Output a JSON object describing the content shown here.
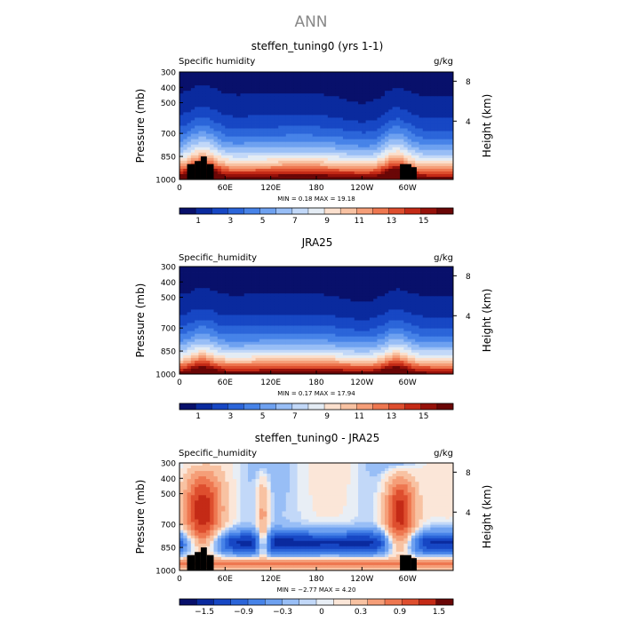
{
  "figure_title": "ANN",
  "chart_data": [
    {
      "type": "heatmap",
      "title": "steffen_tuning0 (yrs 1-1)",
      "field_label": "Specific humidity",
      "units": "g/kg",
      "ylabel": "Pressure (mb)",
      "ylabel_right": "Height (km)",
      "y_ticks": [
        "300",
        "400",
        "500",
        "700",
        "850",
        "1000"
      ],
      "y_tick_values": [
        300,
        400,
        500,
        700,
        850,
        1000
      ],
      "ylim": [
        300,
        1000
      ],
      "height_ticks": [
        "8",
        "4"
      ],
      "height_tick_pressures": [
        360,
        620
      ],
      "x_ticks": [
        "0",
        "60E",
        "120E",
        "180",
        "120W",
        "60W"
      ],
      "x_tick_values": [
        0,
        60,
        120,
        180,
        240,
        300
      ],
      "xlim": [
        0,
        360
      ],
      "stats": {
        "min_label": "MIN =",
        "min": "0.18",
        "max_label": "MAX =",
        "max": "19.18"
      },
      "colorbar_ticks": [
        "1",
        "3",
        "5",
        "7",
        "9",
        "11",
        "13",
        "15"
      ],
      "colorbar_colors": [
        "#08106b",
        "#0a2a9e",
        "#1747c4",
        "#2b65d9",
        "#4783e8",
        "#6ea1f0",
        "#98bef6",
        "#c2d8f8",
        "#e4ecf4",
        "#fbe0ce",
        "#f8c2a2",
        "#f59e78",
        "#ee7750",
        "#de4e2e",
        "#c42a16",
        "#96110a",
        "#6a0606"
      ],
      "colormap": "blue-white-red",
      "value_model": {
        "surface": 17,
        "scale_height": 1.8,
        "upper": 0.2,
        "wet_bands": [
          {
            "lon": 30,
            "width": 16,
            "gain": 0.6
          },
          {
            "lon": 285,
            "width": 14,
            "gain": 0.55
          },
          {
            "lon": 165,
            "width": 70,
            "gain": 0.15
          }
        ],
        "dry_bands": [
          {
            "lon": 240,
            "width": 25,
            "gain": 0.35
          }
        ],
        "topography": [
          {
            "lon1": 10,
            "lon2": 20,
            "p_top": 900
          },
          {
            "lon1": 20,
            "lon2": 28,
            "p_top": 880
          },
          {
            "lon1": 28,
            "lon2": 36,
            "p_top": 850
          },
          {
            "lon1": 36,
            "lon2": 45,
            "p_top": 900
          },
          {
            "lon1": 290,
            "lon2": 305,
            "p_top": 900
          },
          {
            "lon1": 305,
            "lon2": 312,
            "p_top": 920
          }
        ]
      }
    },
    {
      "type": "heatmap",
      "title": "JRA25",
      "field_label": "Specific_humidity",
      "units": "g/kg",
      "ylabel": "Pressure (mb)",
      "ylabel_right": "Height (km)",
      "y_ticks": [
        "300",
        "400",
        "500",
        "700",
        "850",
        "1000"
      ],
      "y_tick_values": [
        300,
        400,
        500,
        700,
        850,
        1000
      ],
      "ylim": [
        300,
        1000
      ],
      "height_ticks": [
        "8",
        "4"
      ],
      "height_tick_pressures": [
        360,
        620
      ],
      "x_ticks": [
        "0",
        "60E",
        "120E",
        "180",
        "120W",
        "60W"
      ],
      "x_tick_values": [
        0,
        60,
        120,
        180,
        240,
        300
      ],
      "xlim": [
        0,
        360
      ],
      "stats": {
        "min_label": "MIN =",
        "min": "0.17",
        "max_label": "MAX =",
        "max": "17.94"
      },
      "colorbar_ticks": [
        "1",
        "3",
        "5",
        "7",
        "9",
        "11",
        "13",
        "15"
      ],
      "colorbar_colors": [
        "#08106b",
        "#0a2a9e",
        "#1747c4",
        "#2b65d9",
        "#4783e8",
        "#6ea1f0",
        "#98bef6",
        "#c2d8f8",
        "#e4ecf4",
        "#fbe0ce",
        "#f8c2a2",
        "#f59e78",
        "#ee7750",
        "#de4e2e",
        "#c42a16",
        "#96110a",
        "#6a0606"
      ],
      "colormap": "blue-white-red",
      "value_model": {
        "surface": 16.5,
        "scale_height": 1.9,
        "upper": 0.2,
        "wet_bands": [
          {
            "lon": 30,
            "width": 14,
            "gain": 0.4
          },
          {
            "lon": 285,
            "width": 14,
            "gain": 0.4
          },
          {
            "lon": 165,
            "width": 70,
            "gain": 0.12
          }
        ],
        "dry_bands": [
          {
            "lon": 240,
            "width": 25,
            "gain": 0.3
          }
        ],
        "topography": []
      }
    },
    {
      "type": "heatmap",
      "title": "steffen_tuning0 - JRA25",
      "field_label": "Specific_humidity",
      "units": "g/kg",
      "ylabel": "Pressure (mb)",
      "ylabel_right": "Height (km)",
      "y_ticks": [
        "300",
        "400",
        "500",
        "700",
        "850",
        "1000"
      ],
      "y_tick_values": [
        300,
        400,
        500,
        700,
        850,
        1000
      ],
      "ylim": [
        300,
        1000
      ],
      "height_ticks": [
        "8",
        "4"
      ],
      "height_tick_pressures": [
        360,
        620
      ],
      "x_ticks": [
        "0",
        "60E",
        "120E",
        "180",
        "120W",
        "60W"
      ],
      "x_tick_values": [
        0,
        60,
        120,
        180,
        240,
        300
      ],
      "xlim": [
        0,
        360
      ],
      "stats": {
        "min_label": "MIN =",
        "min": "−2.77",
        "max_label": "MAX =",
        "max": "4.20"
      },
      "colorbar_ticks": [
        "−1.5",
        "−0.9",
        "−0.3",
        "0",
        "0.3",
        "0.9",
        "1.5"
      ],
      "colorbar_colors": [
        "#08106b",
        "#0a2a9e",
        "#1747c4",
        "#2b65d9",
        "#4783e8",
        "#6ea1f0",
        "#98bef6",
        "#c2d8f8",
        "#e8eef5",
        "#fbe6d8",
        "#f8c2a2",
        "#f59e78",
        "#ee7750",
        "#de4e2e",
        "#c42a16",
        "#6a0606"
      ],
      "colormap": "diverging",
      "value_model": {
        "difference": true,
        "wet_bands": [
          {
            "lon": 30,
            "width": 18,
            "gain": 1.0
          },
          {
            "lon": 290,
            "width": 15,
            "gain": 1.1
          },
          {
            "lon": 110,
            "width": 6,
            "gain": 0.5
          }
        ],
        "dry_band_pressure": 820,
        "topography": [
          {
            "lon1": 10,
            "lon2": 20,
            "p_top": 900
          },
          {
            "lon1": 20,
            "lon2": 28,
            "p_top": 880
          },
          {
            "lon1": 28,
            "lon2": 36,
            "p_top": 850
          },
          {
            "lon1": 36,
            "lon2": 45,
            "p_top": 900
          },
          {
            "lon1": 290,
            "lon2": 305,
            "p_top": 900
          },
          {
            "lon1": 305,
            "lon2": 312,
            "p_top": 920
          }
        ]
      }
    }
  ]
}
